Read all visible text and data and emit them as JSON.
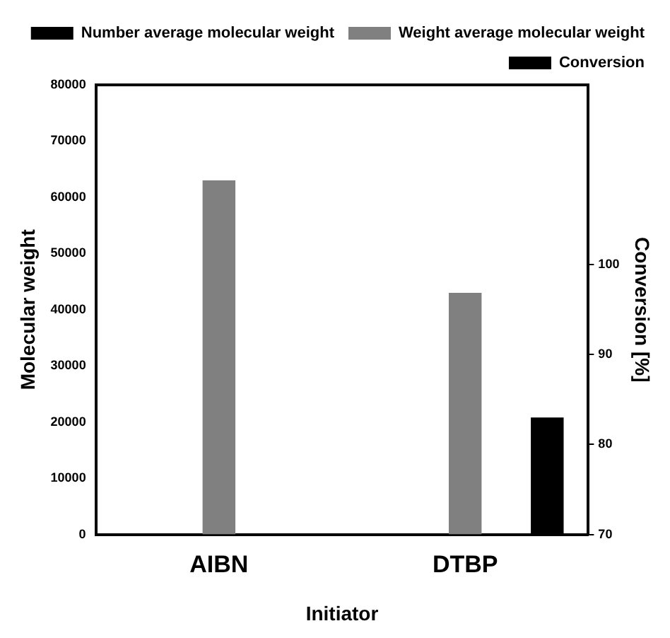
{
  "chart_data": {
    "type": "bar",
    "categories": [
      "AIBN",
      "DTBP"
    ],
    "xlabel": "Initiator",
    "ylabel": "Molecular weight",
    "y2label": "Conversion [%]",
    "series": [
      {
        "name": "Number average molecular weight",
        "color": "#000000",
        "values": [
          null,
          null
        ]
      },
      {
        "name": "Weight average molecular weight",
        "color": "#808080",
        "values": [
          63000,
          43000
        ]
      },
      {
        "name": "Conversion",
        "color": "#000000",
        "values": [
          null,
          83
        ],
        "axis": "y2"
      }
    ],
    "ylim": [
      0,
      80000
    ],
    "yticks": [
      0,
      10000,
      20000,
      30000,
      40000,
      50000,
      60000,
      70000,
      80000
    ],
    "y2lim": [
      70,
      120
    ],
    "y2ticks": [
      70,
      80,
      90,
      100
    ],
    "grid": false,
    "legend": "top right"
  }
}
